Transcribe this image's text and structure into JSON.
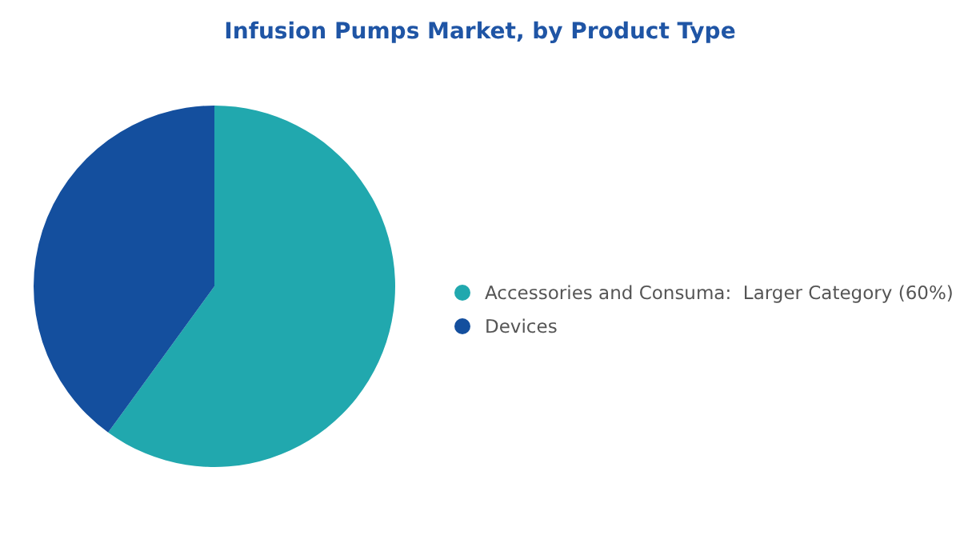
{
  "chart_data": {
    "type": "pie",
    "title": "Infusion Pumps Market, by Product Type",
    "categories": [
      "Accessories and Consuma:  Larger Category (60%)",
      "Devices"
    ],
    "values": [
      60,
      40
    ],
    "colors": [
      "#21a8ae",
      "#144f9e"
    ],
    "legend": "right"
  }
}
